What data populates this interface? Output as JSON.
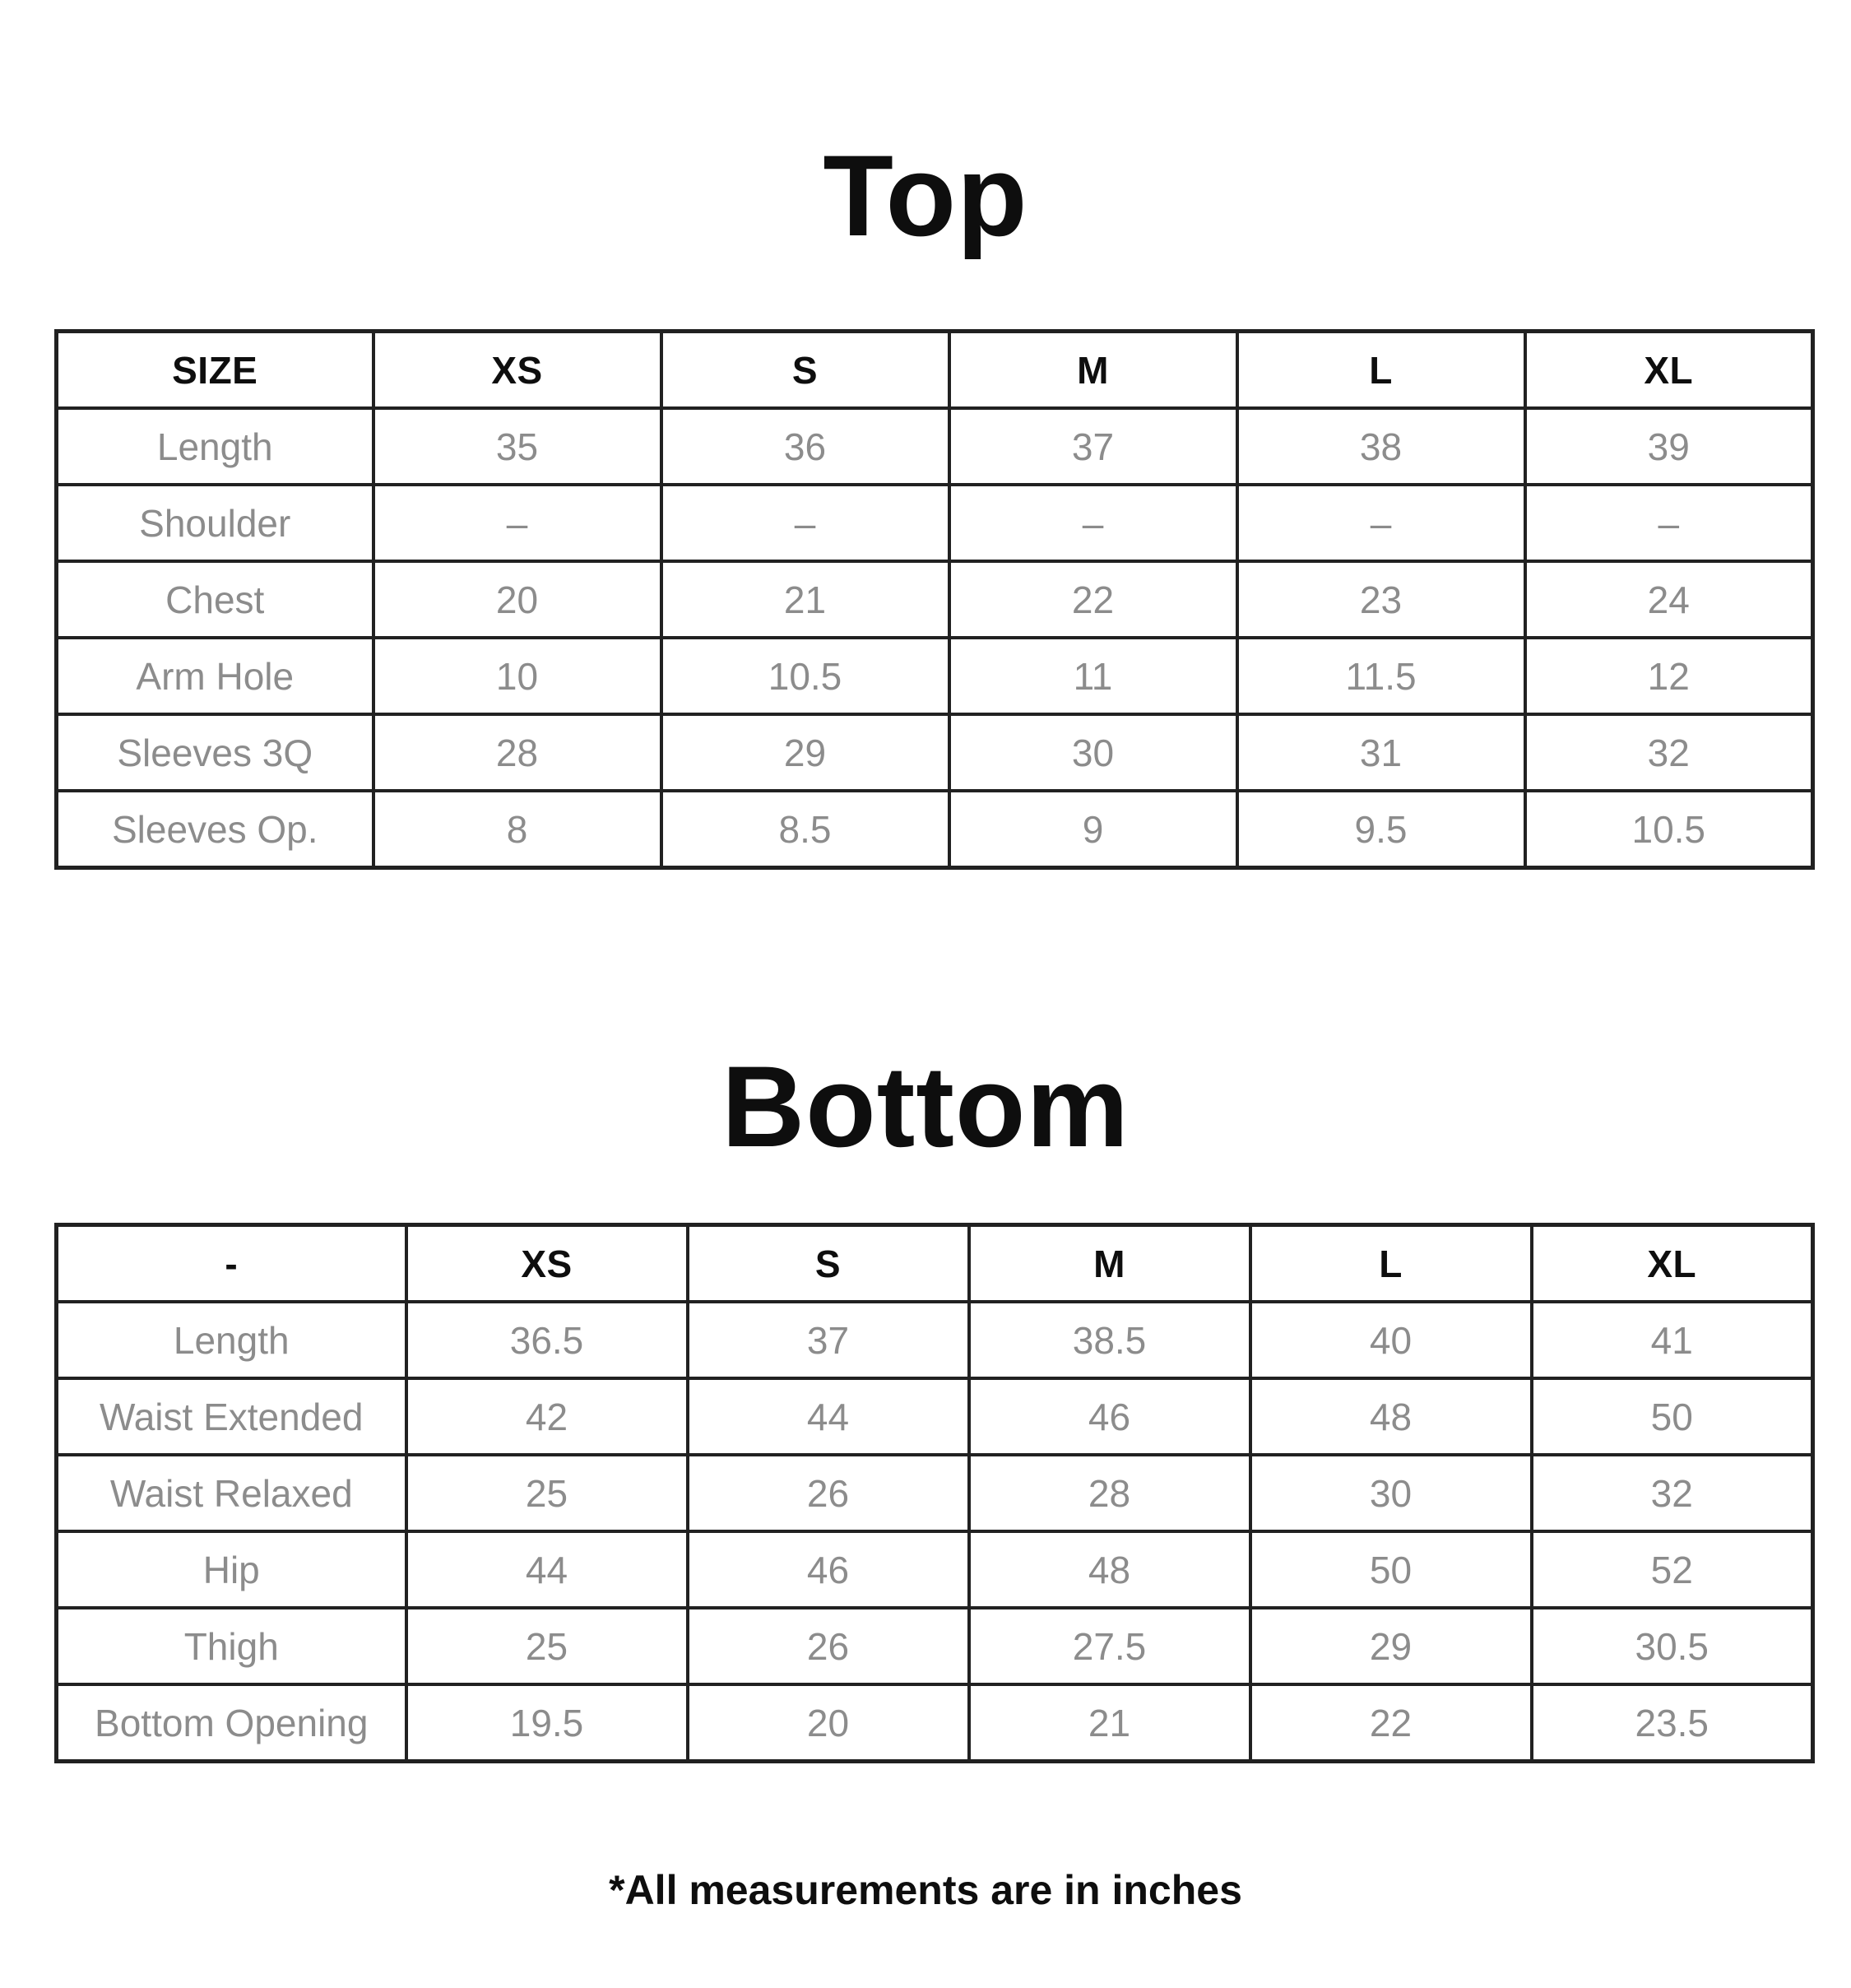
{
  "page": {
    "background": "#ffffff",
    "heading_color": "#0e0e0e",
    "muted_text_color": "#8c8c8c",
    "border_color": "#212121"
  },
  "top_section": {
    "title": "Top",
    "table": {
      "columns": [
        "SIZE",
        "XS",
        "S",
        "M",
        "L",
        "XL"
      ],
      "rows": [
        {
          "label": "Length",
          "values": [
            "35",
            "36",
            "37",
            "38",
            "39"
          ]
        },
        {
          "label": "Shoulder",
          "values": [
            "–",
            "–",
            "–",
            "–",
            "–"
          ]
        },
        {
          "label": "Chest",
          "values": [
            "20",
            "21",
            "22",
            "23",
            "24"
          ]
        },
        {
          "label": "Arm Hole",
          "values": [
            "10",
            "10.5",
            "11",
            "11.5",
            "12"
          ]
        },
        {
          "label": "Sleeves 3Q",
          "values": [
            "28",
            "29",
            "30",
            "31",
            "32"
          ]
        },
        {
          "label": "Sleeves Op.",
          "values": [
            "8",
            "8.5",
            "9",
            "9.5",
            "10.5"
          ]
        }
      ]
    }
  },
  "bottom_section": {
    "title": "Bottom",
    "table": {
      "columns": [
        "-",
        "XS",
        "S",
        "M",
        "L",
        "XL"
      ],
      "rows": [
        {
          "label": "Length",
          "values": [
            "36.5",
            "37",
            "38.5",
            "40",
            "41"
          ]
        },
        {
          "label": "Waist Extended",
          "values": [
            "42",
            "44",
            "46",
            "48",
            "50"
          ]
        },
        {
          "label": "Waist Relaxed",
          "values": [
            "25",
            "26",
            "28",
            "30",
            "32"
          ]
        },
        {
          "label": "Hip",
          "values": [
            "44",
            "46",
            "48",
            "50",
            "52"
          ]
        },
        {
          "label": "Thigh",
          "values": [
            "25",
            "26",
            "27.5",
            "29",
            "30.5"
          ]
        },
        {
          "label": "Bottom Opening",
          "values": [
            "19.5",
            "20",
            "21",
            "22",
            "23.5"
          ]
        }
      ]
    }
  },
  "footnote": "*All measurements are in inches"
}
